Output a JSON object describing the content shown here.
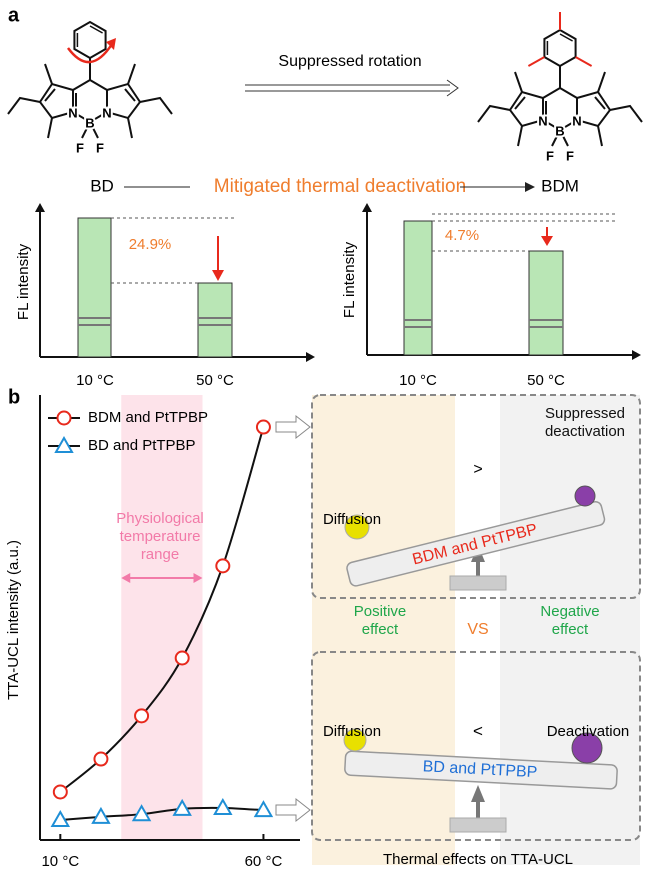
{
  "panel_a": {
    "label": "a",
    "arrow_label": "Suppressed rotation",
    "left_molecule_atoms": [
      "N",
      "B",
      "N",
      "F",
      "F"
    ],
    "right_molecule_atoms": [
      "N",
      "B",
      "N",
      "F",
      "F"
    ],
    "left_name": "BD",
    "right_name": "BDM",
    "middle_label": "Mitigated thermal deactivation",
    "left_chart": {
      "ylabel": "FL intensity",
      "categories": [
        "10 °C",
        "50 °C"
      ],
      "drop_label": "24.9%"
    },
    "right_chart": {
      "ylabel": "FL intensity",
      "categories": [
        "10 °C",
        "50 °C"
      ],
      "drop_label": "4.7%"
    }
  },
  "panel_b": {
    "label": "b",
    "annotation": "Physiological temperature range",
    "diagram": {
      "top": {
        "left": "Diffusion",
        "sign": ">",
        "right": "Suppressed deactivation",
        "beam": "BDM and PtTPBP"
      },
      "middle": {
        "left": "Positive effect",
        "center": "VS",
        "right": "Negative effect"
      },
      "bottom": {
        "left": "Diffusion",
        "sign": "<",
        "right": "Deactivation",
        "beam": "BD and PtTPBP"
      },
      "caption": "Thermal effects on TTA-UCL"
    }
  },
  "chart_data": {
    "type": "line",
    "ylabel": "TTA-UCL intensity (a.u.)",
    "x": [
      10,
      20,
      30,
      40,
      50,
      60
    ],
    "xlim": [
      5,
      69
    ],
    "ylim": [
      0,
      100
    ],
    "xticks": [
      {
        "value": 10,
        "label": "10 °C"
      },
      {
        "value": 60,
        "label": "60 °C"
      }
    ],
    "highlight_range": [
      25,
      45
    ],
    "legend": "upper left",
    "series": [
      {
        "name": "BDM and PtTPBP",
        "color": "#e8291c",
        "marker": "circle",
        "values": [
          10.8,
          18.2,
          27.9,
          40.9,
          61.6,
          92.8
        ]
      },
      {
        "name": "BD and PtTPBP",
        "color": "#1f8fd6",
        "marker": "triangle",
        "values": [
          4.5,
          5.2,
          5.8,
          7.0,
          7.2,
          6.7
        ]
      }
    ]
  }
}
